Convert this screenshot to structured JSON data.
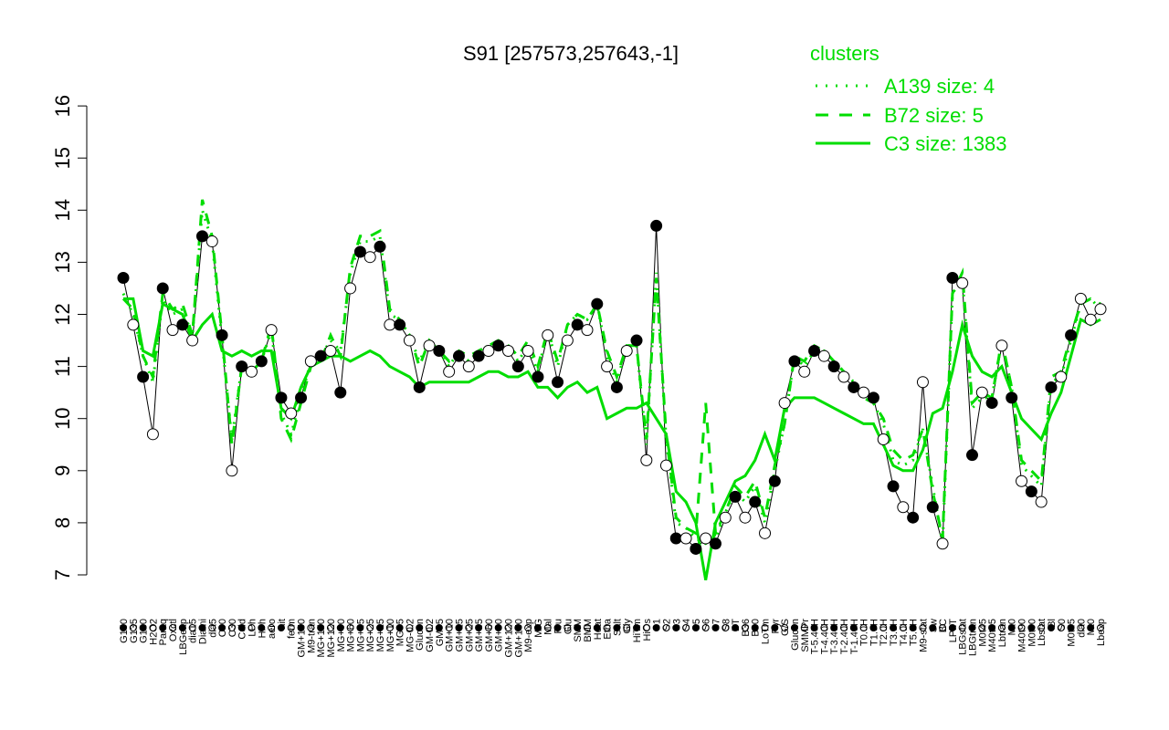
{
  "chart_data": {
    "type": "line",
    "title": "S91 [257573,257643,-1]",
    "xlabel": "",
    "ylabel": "",
    "ylim": [
      7,
      16
    ],
    "yticks": [
      7,
      8,
      9,
      10,
      11,
      12,
      13,
      14,
      15,
      16
    ],
    "grid": false,
    "legend": {
      "title": "clusters",
      "placement": "top-right",
      "items": [
        {
          "label": "A139 size: 4",
          "style": "dotted"
        },
        {
          "label": "B72 size: 5",
          "style": "dashed"
        },
        {
          "label": "C3 size: 1383",
          "style": "solid"
        }
      ]
    },
    "x_labels": [
      "G150",
      "G135",
      "G180",
      "H2O2",
      "Paraq",
      "Oxctl",
      "LBGexp",
      "dia15",
      "Diami",
      "dia5",
      "C90",
      "C30",
      "Cold",
      "LPh",
      "HPh",
      "aero",
      "nit",
      "ferm",
      "GM+150",
      "M9-tran",
      "MG+150",
      "MG+120",
      "MG+90",
      "MG+60",
      "MG+45",
      "MG+25",
      "MG+15",
      "MG+10",
      "MG+5",
      "MG-0.2",
      "Glucon",
      "GM-0.2",
      "GM+5",
      "GM+10",
      "GM+15",
      "GM+25",
      "GM+45",
      "GM+60",
      "GM+90",
      "GM+120",
      "GM+150",
      "M9-exp",
      "M/G",
      "Mal",
      "Fru",
      "Glu",
      "SMM",
      "BMM",
      "Heat",
      "Etha",
      "Salt",
      "Gly",
      "HiTm",
      "HiOs",
      "S1",
      "S2",
      "S3",
      "S4",
      "S5",
      "S6",
      "S7",
      "S8",
      "BT",
      "B36",
      "B60",
      "LoTm",
      "Pyr",
      "G/S",
      "Glucon",
      "SMMPr",
      "T-5.40H",
      "T-4.40H",
      "T-3.40H",
      "T-2.40H",
      "T-1.40H",
      "T0.0H",
      "T1.0H",
      "T2.0H",
      "T3.0H",
      "T4.0H",
      "T5.0H",
      "M9-stat",
      "Sw",
      "BC",
      "LPhT",
      "LBGstat",
      "LBGtran",
      "M0t45",
      "M40t45",
      "Lbtran",
      "Mt0",
      "M40t90",
      "M0t90",
      "Lbstat",
      "Bl",
      "S0",
      "M0t45",
      "dia0",
      "Mt0",
      "Lbexp"
    ],
    "series": [
      {
        "style": "points",
        "values": [
          12.7,
          11.8,
          10.8,
          9.7,
          12.5,
          11.7,
          11.8,
          11.5,
          13.5,
          13.4,
          11.6,
          9.0,
          11.0,
          10.9,
          11.1,
          11.7,
          10.4,
          10.1,
          10.4,
          11.1,
          11.2,
          11.3,
          10.5,
          12.5,
          13.2,
          13.1,
          13.3,
          11.8,
          11.8,
          11.5,
          10.6,
          11.4,
          11.3,
          10.9,
          11.2,
          11.0,
          11.2,
          11.3,
          11.4,
          11.3,
          11.0,
          11.3,
          10.8,
          11.6,
          10.7,
          11.5,
          11.8,
          11.7,
          12.2,
          11.0,
          10.6,
          11.3,
          11.5,
          9.2,
          13.7,
          9.1,
          7.7,
          7.7,
          7.5,
          7.7,
          7.6,
          8.1,
          8.5,
          8.1,
          8.4,
          7.8,
          8.8,
          10.3,
          11.1,
          10.9,
          11.3,
          11.2,
          11.0,
          10.8,
          10.6,
          10.5,
          10.4,
          9.6,
          8.7,
          8.3,
          8.1,
          10.7,
          8.3,
          7.6,
          12.7,
          12.6,
          9.3,
          10.5,
          10.3,
          11.4,
          10.4,
          8.8,
          8.6,
          8.4,
          10.6,
          10.8,
          11.6,
          12.3,
          11.9,
          12.1
        ],
        "marker_fill": [
          "filled",
          "open",
          "filled",
          "open",
          "filled",
          "open",
          "filled",
          "open",
          "filled",
          "open",
          "filled",
          "open",
          "filled",
          "open",
          "filled",
          "open",
          "filled",
          "open",
          "filled",
          "open",
          "filled",
          "open",
          "filled",
          "open",
          "filled",
          "open",
          "filled",
          "open",
          "filled",
          "open",
          "filled",
          "open",
          "filled",
          "open",
          "filled",
          "open",
          "filled",
          "open",
          "filled",
          "open",
          "filled",
          "open",
          "filled",
          "open",
          "filled",
          "open",
          "filled",
          "open",
          "filled",
          "open",
          "filled",
          "open",
          "filled",
          "open",
          "filled",
          "open",
          "filled",
          "open",
          "filled",
          "open",
          "filled",
          "open",
          "filled",
          "open",
          "filled",
          "open",
          "filled",
          "open",
          "filled",
          "open",
          "filled",
          "open",
          "filled",
          "open",
          "filled",
          "open",
          "filled",
          "open",
          "filled",
          "open",
          "filled",
          "open",
          "filled",
          "open",
          "filled",
          "open",
          "filled",
          "open",
          "filled",
          "open",
          "filled",
          "open",
          "filled",
          "open",
          "filled",
          "open",
          "filled",
          "open"
        ]
      },
      {
        "name": "A139 size: 4",
        "style": "dotted",
        "values": [
          12.4,
          12.0,
          11.2,
          10.7,
          12.3,
          12.0,
          12.1,
          11.6,
          14.0,
          13.4,
          11.5,
          9.6,
          11.0,
          10.9,
          11.1,
          11.7,
          10.1,
          9.7,
          10.4,
          11.1,
          11.2,
          11.5,
          11.3,
          12.8,
          13.4,
          13.4,
          13.5,
          12.0,
          11.9,
          11.6,
          11.1,
          11.5,
          11.3,
          11.0,
          11.3,
          11.1,
          11.3,
          11.4,
          11.5,
          11.4,
          11.1,
          11.4,
          10.9,
          11.7,
          11.0,
          11.8,
          12.0,
          11.9,
          12.2,
          11.2,
          10.7,
          11.4,
          11.4,
          9.5,
          12.8,
          9.6,
          8.0,
          7.9,
          7.7,
          7.6,
          7.7,
          8.2,
          8.6,
          8.4,
          8.7,
          8.0,
          9.0,
          9.9,
          11.2,
          11.0,
          11.3,
          11.3,
          11.1,
          10.9,
          10.7,
          10.4,
          10.3,
          9.9,
          9.2,
          9.1,
          9.2,
          9.8,
          8.7,
          7.6,
          12.4,
          12.7,
          10.2,
          10.4,
          10.4,
          11.5,
          10.6,
          9.1,
          8.9,
          8.7,
          10.7,
          10.8,
          11.5,
          12.2,
          12.3,
          12.1
        ]
      },
      {
        "name": "B72 size: 5",
        "style": "dashed",
        "values": [
          12.3,
          12.1,
          11.2,
          10.8,
          12.4,
          12.1,
          12.2,
          11.6,
          14.2,
          13.5,
          11.6,
          9.5,
          11.0,
          10.9,
          11.1,
          11.8,
          10.0,
          9.6,
          10.3,
          11.0,
          11.1,
          11.6,
          11.2,
          12.9,
          13.5,
          13.5,
          13.6,
          12.1,
          11.9,
          11.6,
          11.0,
          11.5,
          11.3,
          11.1,
          11.3,
          11.2,
          11.3,
          11.4,
          11.5,
          11.4,
          11.2,
          11.5,
          11.0,
          11.7,
          11.1,
          11.8,
          12.0,
          11.9,
          12.2,
          11.3,
          10.8,
          11.4,
          11.4,
          9.6,
          12.7,
          9.7,
          8.1,
          7.9,
          7.8,
          10.3,
          7.8,
          8.2,
          8.7,
          8.5,
          8.8,
          8.1,
          9.1,
          9.9,
          11.2,
          11.1,
          11.4,
          11.3,
          11.1,
          10.9,
          10.7,
          10.4,
          10.3,
          10.0,
          9.4,
          9.2,
          9.3,
          9.8,
          8.6,
          7.7,
          12.4,
          12.8,
          10.3,
          10.5,
          10.4,
          11.5,
          10.6,
          9.2,
          9.0,
          8.8,
          10.8,
          10.9,
          11.6,
          12.2,
          12.3,
          12.2
        ]
      },
      {
        "name": "C3 size: 1383",
        "style": "solid",
        "values": [
          12.3,
          12.3,
          11.3,
          11.2,
          12.2,
          12.1,
          12.0,
          11.5,
          11.8,
          12.0,
          11.3,
          11.2,
          11.3,
          11.2,
          11.3,
          11.3,
          10.2,
          10.0,
          10.6,
          11.0,
          11.1,
          11.2,
          11.2,
          11.1,
          11.2,
          11.3,
          11.2,
          11.0,
          10.9,
          10.8,
          10.6,
          10.7,
          10.7,
          10.7,
          10.7,
          10.7,
          10.8,
          10.9,
          10.9,
          10.8,
          10.8,
          10.9,
          10.6,
          10.6,
          10.4,
          10.6,
          10.7,
          10.5,
          10.6,
          10.0,
          10.1,
          10.2,
          10.2,
          10.3,
          10.0,
          9.7,
          8.6,
          8.4,
          8.0,
          6.9,
          8.0,
          8.4,
          8.8,
          8.9,
          9.2,
          9.7,
          9.2,
          10.2,
          10.4,
          10.4,
          10.4,
          10.3,
          10.2,
          10.1,
          10.0,
          9.9,
          9.9,
          9.5,
          9.1,
          9.0,
          9.0,
          9.4,
          10.1,
          10.2,
          10.9,
          11.8,
          11.2,
          10.9,
          10.8,
          11.0,
          10.5,
          10.0,
          9.8,
          9.6,
          10.1,
          10.5,
          11.2,
          11.9,
          11.8,
          11.9
        ]
      }
    ],
    "colors": {
      "cluster_lines": "#00dd00",
      "points": "#000000"
    }
  }
}
